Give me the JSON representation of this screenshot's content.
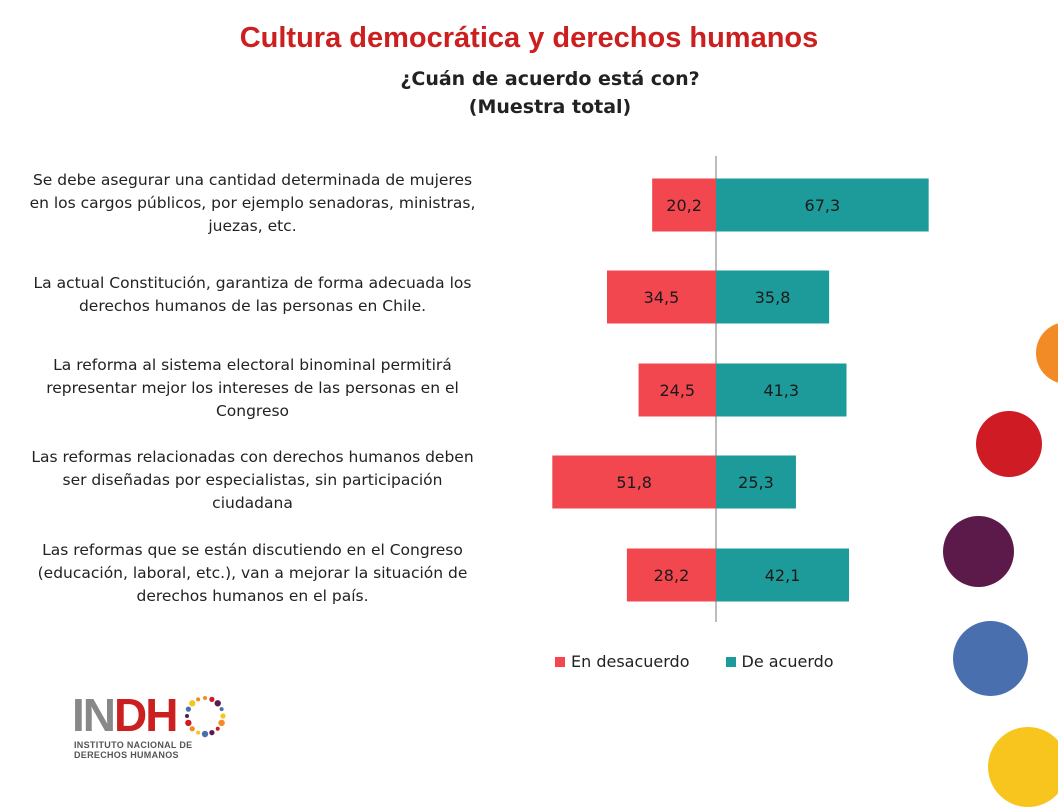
{
  "slide_title": "Cultura democrática y derechos humanos",
  "chart_data": {
    "type": "bar",
    "orientation": "horizontal-diverging",
    "title": [
      "¿Cuán de acuerdo está con?",
      "(Muestra total)"
    ],
    "categories": [
      [
        "Se debe asegurar una cantidad determinada de mujeres",
        "en los cargos públicos, por ejemplo senadoras, ministras,",
        "juezas, etc."
      ],
      [
        "La actual Constitución, garantiza de forma adecuada los",
        "derechos humanos de las personas en Chile."
      ],
      [
        "La reforma al sistema electoral binominal permitirá",
        "representar mejor los intereses de las personas en el",
        "Congreso"
      ],
      [
        "Las reformas relacionadas con derechos humanos deben",
        "ser diseñadas por especialistas, sin participación",
        "ciudadana"
      ],
      [
        "Las reformas que se están discutiendo en el Congreso",
        "(educación, laboral, etc.), van a mejorar la situación de",
        "derechos humanos en el país."
      ]
    ],
    "series": [
      {
        "name": "En desacuerdo",
        "color": "#f2474f",
        "values": [
          20.2,
          34.5,
          24.5,
          51.8,
          28.2
        ],
        "labels": [
          "20,2",
          "34,5",
          "24,5",
          "51,8",
          "28,2"
        ]
      },
      {
        "name": "De acuerdo",
        "color": "#1d9a9a",
        "values": [
          67.3,
          35.8,
          41.3,
          25.3,
          42.1
        ],
        "labels": [
          "67,3",
          "35,8",
          "41,3",
          "25,3",
          "42,1"
        ]
      }
    ],
    "legend_position": "bottom",
    "grid": false
  },
  "logo": {
    "text_in": "IN",
    "text_dh": "DH",
    "subtitle_1": "INSTITUTO NACIONAL DE",
    "subtitle_2": "DERECHOS HUMANOS",
    "color_in": "#888888",
    "color_dh": "#cc1f1f"
  },
  "decorations": {
    "circle_colors": [
      "#f28b25",
      "#cf1c24",
      "#5b1a4a",
      "#4a6fae",
      "#f7c51e"
    ]
  }
}
